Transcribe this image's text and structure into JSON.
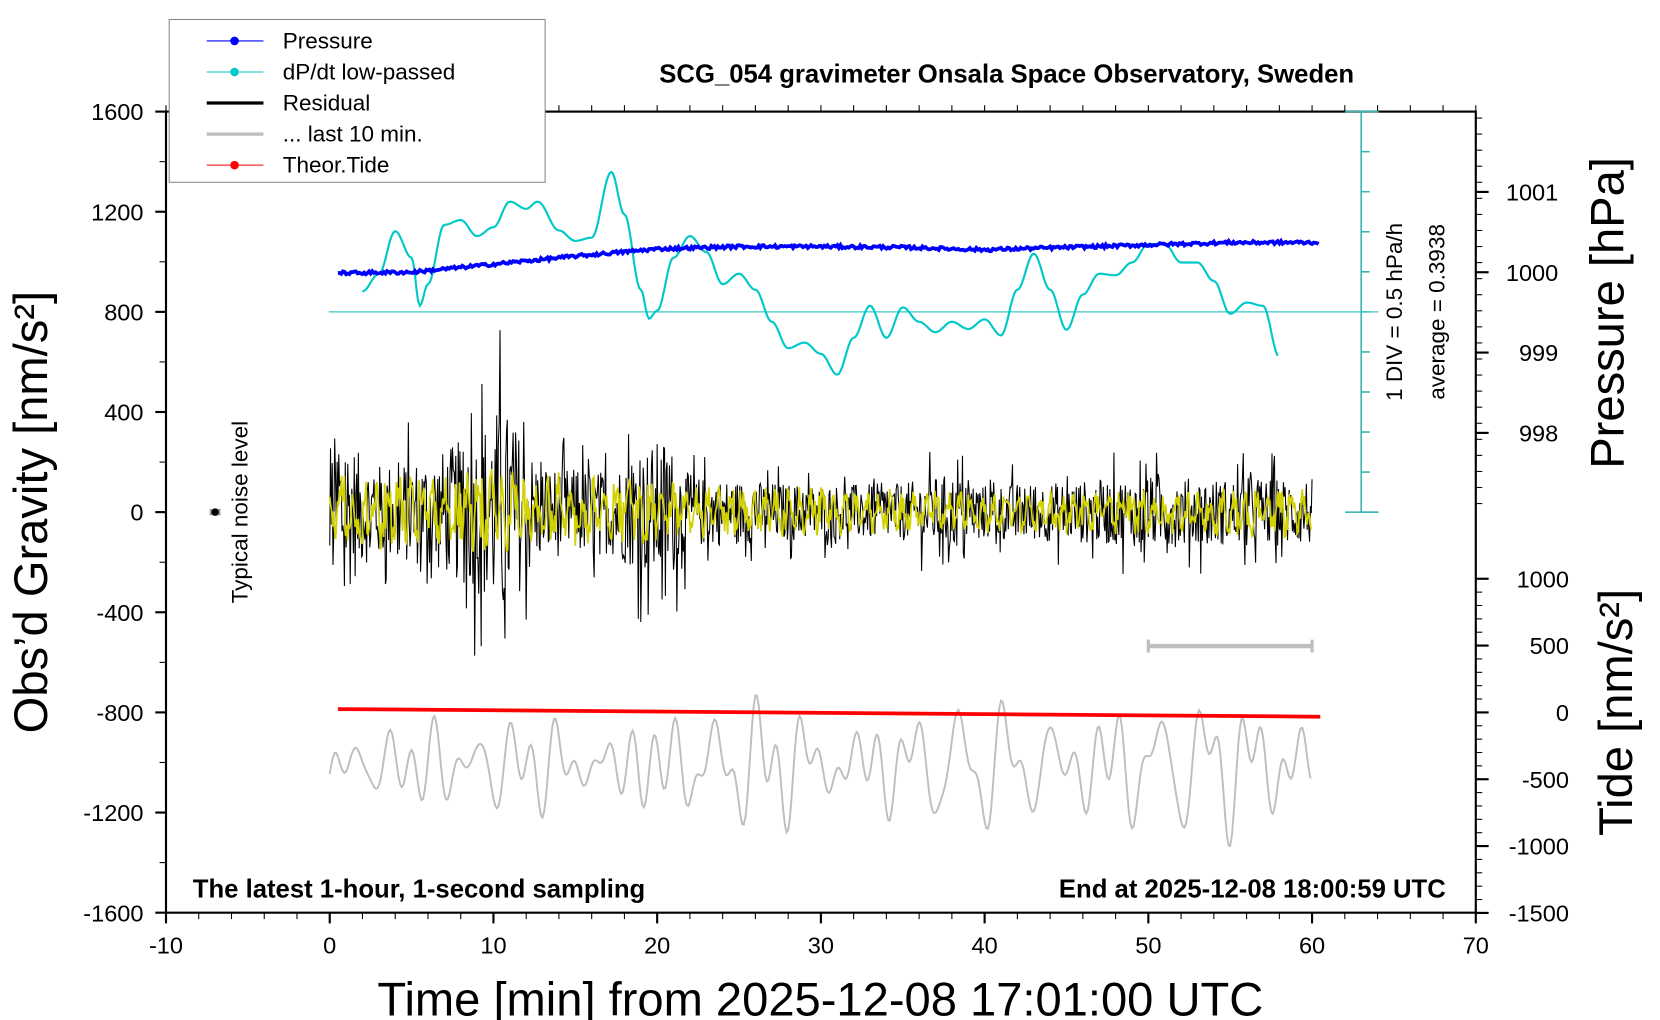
{
  "chart_data": {
    "type": "line",
    "title": "SCG_054 gravimeter Onsala Space Observatory, Sweden",
    "xlabel": "Time [min] from 2025-12-08 17:01:00 UTC",
    "ylabel_left": "Obs’d Gravity [nm/s²]",
    "ylabel_right_top": "Pressure [hPa]",
    "ylabel_right_bottom": "Tide [nm/s²]",
    "xlim": [
      -10,
      70
    ],
    "ylim_left": [
      -1600,
      1600
    ],
    "x_ticks": [
      "-10",
      "0",
      "10",
      "20",
      "30",
      "40",
      "50",
      "60",
      "70"
    ],
    "y_left_ticks": [
      "1600",
      "1200",
      "800",
      "400",
      "0",
      "-400",
      "-800",
      "-1200",
      "-1600"
    ],
    "y_pressure_ticks": [
      "1001",
      "1000",
      "999",
      "998"
    ],
    "y_tide_ticks": [
      "1000",
      "500",
      "0",
      "-500",
      "-1000",
      "-1500"
    ],
    "bottom_left_note": "The latest 1-hour, 1-second sampling",
    "bottom_right_note": "End at 2025-12-08 18:00:59 UTC",
    "noise_label": "Typical noise level",
    "dpdt_scale_label": "1 DIV = 0.5 hPa/h",
    "dpdt_average_label": "average = 0.3938",
    "dpdt_average": 0.3938,
    "legend": {
      "position": "top-left",
      "entries": [
        {
          "label": "Pressure",
          "color": "#0000ff"
        },
        {
          "label": "dP/dt low-passed",
          "color": "#00c8c8"
        },
        {
          "label": "Residual",
          "color": "#000000"
        },
        {
          "label": "... last 10 min.",
          "color": "#bebebe"
        },
        {
          "label": "Theor.Tide",
          "color": "#ff0000"
        }
      ]
    },
    "series": {
      "pressure_hpa": {
        "x": [
          0.5,
          5,
          10,
          15,
          20,
          25,
          30,
          35,
          40,
          45,
          50,
          55,
          60.5
        ],
        "y": [
          999.99,
          1000.0,
          1000.1,
          1000.2,
          1000.29,
          1000.32,
          1000.32,
          1000.31,
          1000.28,
          1000.31,
          1000.34,
          1000.37,
          1000.37
        ]
      },
      "dpdt_hpa_per_h": {
        "x": [
          2,
          3,
          4,
          5,
          5.5,
          6,
          7,
          8,
          9,
          10,
          11,
          12,
          12.7,
          14,
          15,
          16,
          17.2,
          18,
          19,
          19.5,
          20,
          21,
          22,
          23,
          24,
          25,
          26,
          27,
          28,
          29,
          30,
          31,
          32,
          33,
          34,
          35,
          36,
          37,
          38,
          39,
          40,
          41,
          42,
          43,
          44,
          45,
          46,
          47,
          48,
          49,
          50,
          51,
          52,
          53,
          54,
          55,
          56,
          57,
          58
        ],
        "y": [
          0.65,
          0.87,
          1.4,
          1.07,
          0.47,
          0.74,
          1.48,
          1.54,
          1.34,
          1.45,
          1.77,
          1.68,
          1.77,
          1.41,
          1.28,
          1.32,
          2.14,
          1.61,
          0.67,
          0.31,
          0.41,
          1.07,
          1.34,
          1.14,
          0.74,
          0.87,
          0.67,
          0.27,
          -0.06,
          0.01,
          -0.13,
          -0.39,
          0.07,
          0.47,
          0.07,
          0.45,
          0.27,
          0.14,
          0.27,
          0.18,
          0.3,
          0.1,
          0.67,
          1.12,
          0.67,
          0.17,
          0.61,
          0.87,
          0.85,
          1.01,
          1.24,
          1.24,
          1.01,
          1.01,
          0.78,
          0.37,
          0.51,
          0.47,
          -0.17
        ]
      },
      "residual_amplitude_envelope": {
        "x": [
          0,
          1,
          2,
          3,
          5,
          7,
          9,
          10.5,
          12,
          13,
          15,
          17,
          19,
          20.5,
          22,
          25,
          30,
          35,
          38,
          40,
          45,
          50,
          55,
          60
        ],
        "y": [
          550,
          600,
          380,
          350,
          380,
          450,
          600,
          800,
          500,
          330,
          320,
          300,
          450,
          550,
          260,
          230,
          200,
          210,
          280,
          200,
          220,
          260,
          240,
          250
        ]
      },
      "filtered_residual_amplitude_envelope": {
        "x": [
          0,
          10,
          20,
          25,
          40,
          60
        ],
        "y": [
          140,
          150,
          110,
          90,
          70,
          90
        ]
      },
      "last_10_min_curve_center": -1010,
      "last_10_min_curve_amplitude": 260,
      "last_10_min_marker": {
        "x": [
          50,
          60
        ],
        "y": -535
      },
      "theor_tide_nm_s2": {
        "x": [
          0.5,
          60.5
        ],
        "y": [
          25,
          -32
        ]
      },
      "noise_level": {
        "x": -7,
        "y": 0,
        "error": 20
      }
    }
  }
}
